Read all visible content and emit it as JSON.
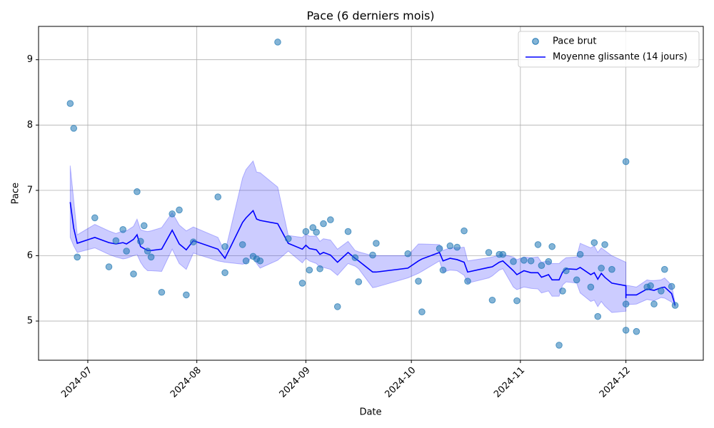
{
  "chart_data": {
    "type": "scatter",
    "title": "Pace (6 derniers mois)",
    "xlabel": "Date",
    "ylabel": "Pace",
    "grid": true,
    "legend": "upper right",
    "xlim": [
      "2024-06-17",
      "2024-12-23"
    ],
    "xticks": [
      {
        "value": "2024-07-01",
        "label": "2024-07"
      },
      {
        "value": "2024-08-01",
        "label": "2024-08"
      },
      {
        "value": "2024-09-01",
        "label": "2024-09"
      },
      {
        "value": "2024-10-01",
        "label": "2024-10"
      },
      {
        "value": "2024-11-01",
        "label": "2024-11"
      },
      {
        "value": "2024-12-01",
        "label": "2024-12"
      }
    ],
    "ylim": [
      4.4,
      9.51
    ],
    "yticks": [
      5,
      6,
      7,
      8,
      9
    ],
    "x": [
      "2024-06-26",
      "2024-06-27",
      "2024-06-28",
      "2024-07-03",
      "2024-07-07",
      "2024-07-09",
      "2024-07-11",
      "2024-07-12",
      "2024-07-14",
      "2024-07-15",
      "2024-07-16",
      "2024-07-17",
      "2024-07-18",
      "2024-07-19",
      "2024-07-22",
      "2024-07-25",
      "2024-07-27",
      "2024-07-29",
      "2024-07-31",
      "2024-08-07",
      "2024-08-09",
      "2024-08-09",
      "2024-08-14",
      "2024-08-15",
      "2024-08-17",
      "2024-08-18",
      "2024-08-19",
      "2024-08-24",
      "2024-08-27",
      "2024-08-31",
      "2024-09-01",
      "2024-09-02",
      "2024-09-03",
      "2024-09-04",
      "2024-09-05",
      "2024-09-06",
      "2024-09-08",
      "2024-09-10",
      "2024-09-13",
      "2024-09-15",
      "2024-09-16",
      "2024-09-20",
      "2024-09-21",
      "2024-09-30",
      "2024-10-03",
      "2024-10-04",
      "2024-10-09",
      "2024-10-10",
      "2024-10-12",
      "2024-10-14",
      "2024-10-16",
      "2024-10-17",
      "2024-10-23",
      "2024-10-24",
      "2024-10-26",
      "2024-10-27",
      "2024-10-30",
      "2024-10-31",
      "2024-11-02",
      "2024-11-04",
      "2024-11-06",
      "2024-11-07",
      "2024-11-09",
      "2024-11-10",
      "2024-11-12",
      "2024-11-13",
      "2024-11-14",
      "2024-11-17",
      "2024-11-18",
      "2024-11-21",
      "2024-11-22",
      "2024-11-23",
      "2024-11-24",
      "2024-11-25",
      "2024-11-27",
      "2024-12-01",
      "2024-12-01",
      "2024-12-01",
      "2024-12-04",
      "2024-12-07",
      "2024-12-08",
      "2024-12-09",
      "2024-12-11",
      "2024-12-12",
      "2024-12-14",
      "2024-12-15"
    ],
    "series": [
      {
        "name": "Pace brut",
        "type": "scatter",
        "color": "#1f77b4",
        "values": [
          8.33,
          7.95,
          5.98,
          6.58,
          5.83,
          6.23,
          6.4,
          6.07,
          5.72,
          6.98,
          6.22,
          6.46,
          6.07,
          5.98,
          5.44,
          6.64,
          6.7,
          5.4,
          6.21,
          6.9,
          6.14,
          5.74,
          6.17,
          5.92,
          5.99,
          5.95,
          5.92,
          9.27,
          6.26,
          5.58,
          6.37,
          5.78,
          6.43,
          6.36,
          5.8,
          6.49,
          6.55,
          5.22,
          6.37,
          5.97,
          5.6,
          6.01,
          6.19,
          6.03,
          5.61,
          5.14,
          6.11,
          5.78,
          6.15,
          6.13,
          6.38,
          5.61,
          6.05,
          5.32,
          6.02,
          6.02,
          5.91,
          5.31,
          5.93,
          5.92,
          6.17,
          5.85,
          5.91,
          6.14,
          4.63,
          5.46,
          5.77,
          5.63,
          6.02,
          5.52,
          6.2,
          5.07,
          5.81,
          6.17,
          5.79,
          7.44,
          5.26,
          4.86,
          4.84,
          5.52,
          5.54,
          5.26,
          5.46,
          5.79,
          5.53,
          5.24
        ]
      },
      {
        "name": "Moyenne glissante (14 jours)",
        "type": "line",
        "color": "#0000ff",
        "band_color": "#0000ff",
        "values": [
          6.82,
          6.42,
          6.19,
          6.28,
          6.2,
          6.18,
          6.2,
          6.18,
          6.25,
          6.32,
          6.14,
          6.11,
          6.08,
          6.08,
          6.1,
          6.39,
          6.18,
          6.09,
          6.23,
          6.1,
          5.96,
          5.96,
          6.51,
          6.58,
          6.69,
          6.56,
          6.54,
          6.49,
          6.19,
          6.1,
          6.16,
          6.11,
          6.1,
          6.09,
          6.02,
          6.05,
          6.01,
          5.9,
          6.05,
          5.96,
          5.92,
          5.75,
          5.75,
          5.81,
          5.92,
          5.95,
          6.05,
          5.92,
          5.96,
          5.94,
          5.9,
          5.75,
          5.82,
          5.83,
          5.9,
          5.92,
          5.77,
          5.71,
          5.77,
          5.74,
          5.74,
          5.67,
          5.71,
          5.63,
          5.63,
          5.75,
          5.8,
          5.79,
          5.82,
          5.71,
          5.74,
          5.64,
          5.73,
          5.67,
          5.58,
          5.54,
          5.35,
          5.4,
          5.4,
          5.49,
          5.48,
          5.47,
          5.51,
          5.52,
          5.42,
          5.24
        ],
        "lower": [
          6.28,
          6.15,
          6.05,
          6.12,
          6.02,
          5.98,
          5.95,
          5.96,
          6.0,
          6.02,
          5.9,
          5.82,
          5.77,
          5.77,
          5.76,
          6.1,
          5.88,
          5.79,
          6.04,
          5.92,
          5.9,
          5.9,
          5.87,
          5.88,
          6.0,
          5.88,
          5.81,
          5.93,
          6.07,
          5.89,
          5.96,
          5.92,
          5.9,
          5.88,
          5.82,
          5.82,
          5.79,
          5.7,
          5.88,
          5.84,
          5.8,
          5.51,
          5.52,
          5.66,
          5.73,
          5.76,
          5.92,
          5.75,
          5.78,
          5.77,
          5.7,
          5.58,
          5.66,
          5.69,
          5.78,
          5.8,
          5.52,
          5.48,
          5.52,
          5.5,
          5.49,
          5.43,
          5.46,
          5.38,
          5.38,
          5.55,
          5.6,
          5.58,
          5.43,
          5.3,
          5.32,
          5.22,
          5.3,
          5.23,
          5.13,
          5.15,
          5.22,
          5.25,
          5.26,
          5.33,
          5.32,
          5.31,
          5.36,
          5.35,
          5.29,
          5.22
        ],
        "upper": [
          7.38,
          6.85,
          6.32,
          6.48,
          6.38,
          6.34,
          6.38,
          6.38,
          6.45,
          6.56,
          6.4,
          6.38,
          6.37,
          6.38,
          6.43,
          6.66,
          6.47,
          6.38,
          6.44,
          6.28,
          6.05,
          6.05,
          7.19,
          7.32,
          7.45,
          7.28,
          7.27,
          7.05,
          6.31,
          6.28,
          6.33,
          6.3,
          6.3,
          6.3,
          6.22,
          6.26,
          6.24,
          6.1,
          6.22,
          6.08,
          6.06,
          6.0,
          6.0,
          6.0,
          6.18,
          6.18,
          6.17,
          6.08,
          6.12,
          6.12,
          6.13,
          5.92,
          5.97,
          5.98,
          6.01,
          6.02,
          5.98,
          5.94,
          5.98,
          5.97,
          5.98,
          5.9,
          5.92,
          5.88,
          5.88,
          5.93,
          5.97,
          5.98,
          6.19,
          6.12,
          6.15,
          6.05,
          6.12,
          6.08,
          6.0,
          5.9,
          5.52,
          5.55,
          5.52,
          5.63,
          5.62,
          5.62,
          5.63,
          5.66,
          5.55,
          5.27
        ]
      }
    ]
  }
}
